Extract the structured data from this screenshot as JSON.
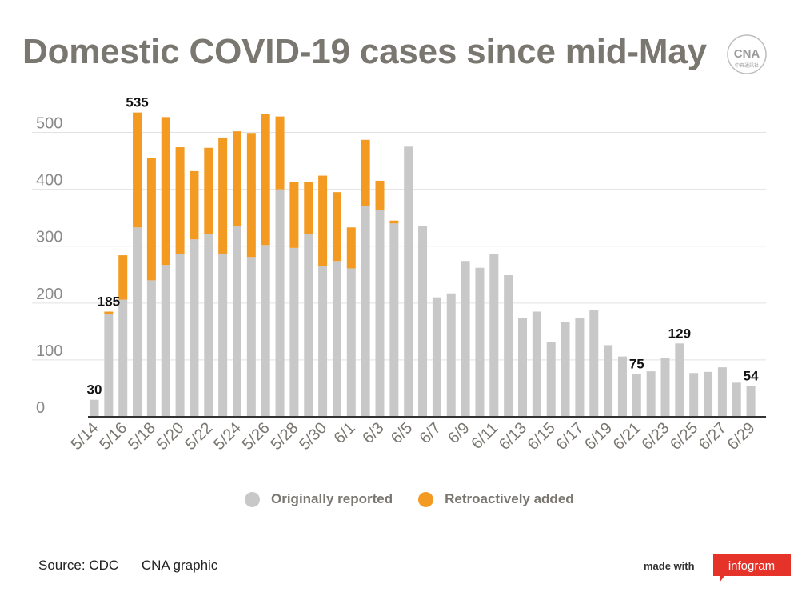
{
  "header": {
    "title": "Domestic COVID-19 cases since mid-May"
  },
  "logo": {
    "text": "CNA",
    "subtext": "中央通訊社"
  },
  "legend": {
    "original": "Originally reported",
    "retro": "Retroactively added"
  },
  "footer": {
    "source": "Source: CDC",
    "graphic": "CNA graphic"
  },
  "branding": {
    "made_with": "made with",
    "infogram": "infogram"
  },
  "colors": {
    "original": "#c8c8c8",
    "retro": "#f39a23",
    "title": "#7a7670",
    "axis": "#333333",
    "grid": "#e2e2e2",
    "brand": "#e5332a"
  },
  "chart_data": {
    "type": "bar",
    "stacked": true,
    "title": "Domestic COVID-19 cases since mid-May",
    "xlabel": "",
    "ylabel": "",
    "ylim": [
      0,
      550
    ],
    "yticks": [
      0,
      100,
      200,
      300,
      400,
      500
    ],
    "grid": true,
    "legend_position": "bottom",
    "categories": [
      "5/14",
      "5/15",
      "5/16",
      "5/17",
      "5/18",
      "5/19",
      "5/20",
      "5/21",
      "5/22",
      "5/23",
      "5/24",
      "5/25",
      "5/26",
      "5/27",
      "5/28",
      "5/29",
      "5/30",
      "5/31",
      "6/1",
      "6/2",
      "6/3",
      "6/4",
      "6/5",
      "6/6",
      "6/7",
      "6/8",
      "6/9",
      "6/10",
      "6/11",
      "6/12",
      "6/13",
      "6/14",
      "6/15",
      "6/16",
      "6/17",
      "6/18",
      "6/19",
      "6/20",
      "6/21",
      "6/22",
      "6/23",
      "6/24",
      "6/25",
      "6/26",
      "6/27",
      "6/28",
      "6/29"
    ],
    "tick_labels": [
      "5/14",
      "5/16",
      "5/18",
      "5/20",
      "5/22",
      "5/24",
      "5/26",
      "5/28",
      "5/30",
      "6/1",
      "6/3",
      "6/5",
      "6/7",
      "6/9",
      "6/11",
      "6/13",
      "6/15",
      "6/17",
      "6/19",
      "6/21",
      "6/23",
      "6/25",
      "6/27",
      "6/29"
    ],
    "series": [
      {
        "name": "Originally reported",
        "values": [
          30,
          180,
          206,
          333,
          240,
          267,
          286,
          312,
          321,
          287,
          335,
          281,
          302,
          400,
          297,
          321,
          265,
          274,
          261,
          370,
          364,
          340,
          475,
          335,
          210,
          217,
          274,
          262,
          287,
          249,
          173,
          185,
          132,
          167,
          174,
          187,
          126,
          106,
          75,
          80,
          104,
          129,
          77,
          79,
          87,
          60,
          54
        ]
      },
      {
        "name": "Retroactively added",
        "values": [
          0,
          5,
          78,
          202,
          215,
          260,
          188,
          120,
          152,
          204,
          167,
          218,
          230,
          128,
          116,
          92,
          159,
          121,
          72,
          117,
          51,
          5,
          0,
          0,
          0,
          0,
          0,
          0,
          0,
          0,
          0,
          0,
          0,
          0,
          0,
          0,
          0,
          0,
          0,
          0,
          0,
          0,
          0,
          0,
          0,
          0,
          0
        ]
      }
    ],
    "annotations": [
      {
        "category": "5/14",
        "label": "30"
      },
      {
        "category": "5/15",
        "label": "185"
      },
      {
        "category": "5/17",
        "label": "535"
      },
      {
        "category": "6/21",
        "label": "75"
      },
      {
        "category": "6/24",
        "label": "129"
      },
      {
        "category": "6/29",
        "label": "54"
      }
    ]
  }
}
